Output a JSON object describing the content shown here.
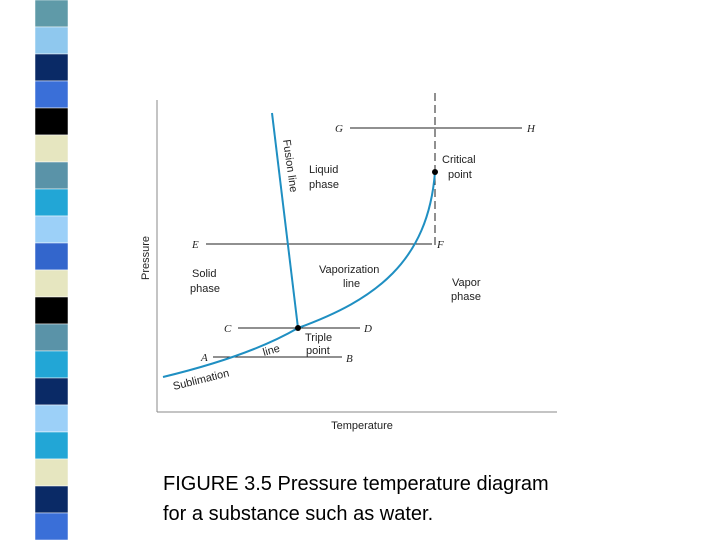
{
  "diagram": {
    "axes": {
      "y_label": "Pressure",
      "x_label": "Temperature"
    },
    "regions": {
      "liquid": [
        "Liquid",
        "phase"
      ],
      "solid": [
        "Solid",
        "phase"
      ],
      "vapor": [
        "Vapor",
        "phase"
      ]
    },
    "curves": {
      "fusion": "Fusion line",
      "vaporization": [
        "Vaporization",
        "line"
      ],
      "sublimation": [
        "Sublimation",
        "line"
      ]
    },
    "points": {
      "critical": [
        "Critical",
        "point"
      ],
      "triple": [
        "Triple",
        "point"
      ]
    },
    "lines": {
      "GH": [
        "G",
        "H"
      ],
      "EF": [
        "E",
        "F"
      ],
      "CD": [
        "C",
        "D"
      ],
      "AB": [
        "A",
        "B"
      ]
    }
  },
  "caption": [
    "FIGURE 3.5 Pressure temperature diagram",
    "for a substance such as water."
  ]
}
